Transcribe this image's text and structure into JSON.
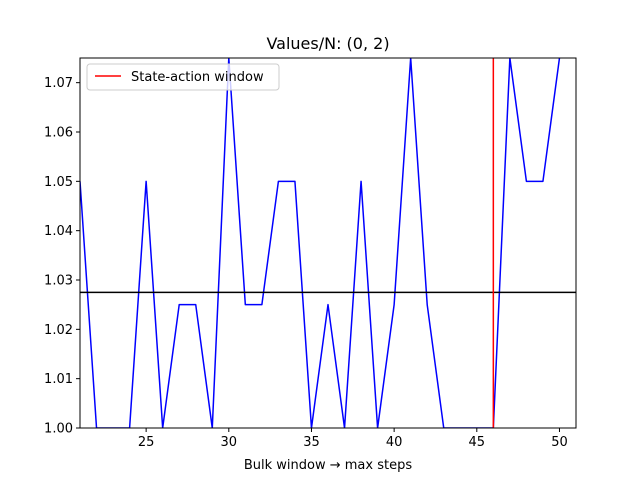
{
  "chart_data": {
    "type": "line",
    "title": "Values/N: (0, 2)",
    "xlabel": "Bulk window → max steps",
    "ylabel": "",
    "xlim": [
      21,
      51
    ],
    "ylim": [
      1.0,
      1.075
    ],
    "xticks": [
      25,
      30,
      35,
      40,
      45,
      50
    ],
    "xtick_labels": [
      "25",
      "30",
      "35",
      "40",
      "45",
      "50"
    ],
    "yticks": [
      1.0,
      1.01,
      1.02,
      1.03,
      1.04,
      1.05,
      1.06,
      1.07
    ],
    "ytick_labels": [
      "1.00",
      "1.01",
      "1.02",
      "1.03",
      "1.04",
      "1.05",
      "1.06",
      "1.07"
    ],
    "grid": false,
    "legend_position": "top-left",
    "series": [
      {
        "color": "#0000ff",
        "x": [
          21,
          22,
          23,
          24,
          25,
          26,
          27,
          28,
          29,
          30,
          31,
          32,
          33,
          34,
          35,
          36,
          37,
          38,
          39,
          40,
          41,
          42,
          43,
          44,
          45,
          46,
          47,
          48,
          49,
          50
        ],
        "values": [
          1.05,
          1.0,
          1.0,
          1.0,
          1.05,
          1.0,
          1.025,
          1.025,
          1.0,
          1.075,
          1.025,
          1.025,
          1.05,
          1.05,
          1.0,
          1.025,
          1.0,
          1.05,
          1.0,
          1.025,
          1.075,
          1.025,
          1.0,
          1.0,
          1.0,
          1.0,
          1.075,
          1.05,
          1.05,
          1.075
        ]
      }
    ],
    "hline": {
      "y": 1.0275,
      "color": "#000000"
    },
    "vline": {
      "x": 46,
      "color": "#ff0000",
      "name": "State-action window"
    }
  }
}
